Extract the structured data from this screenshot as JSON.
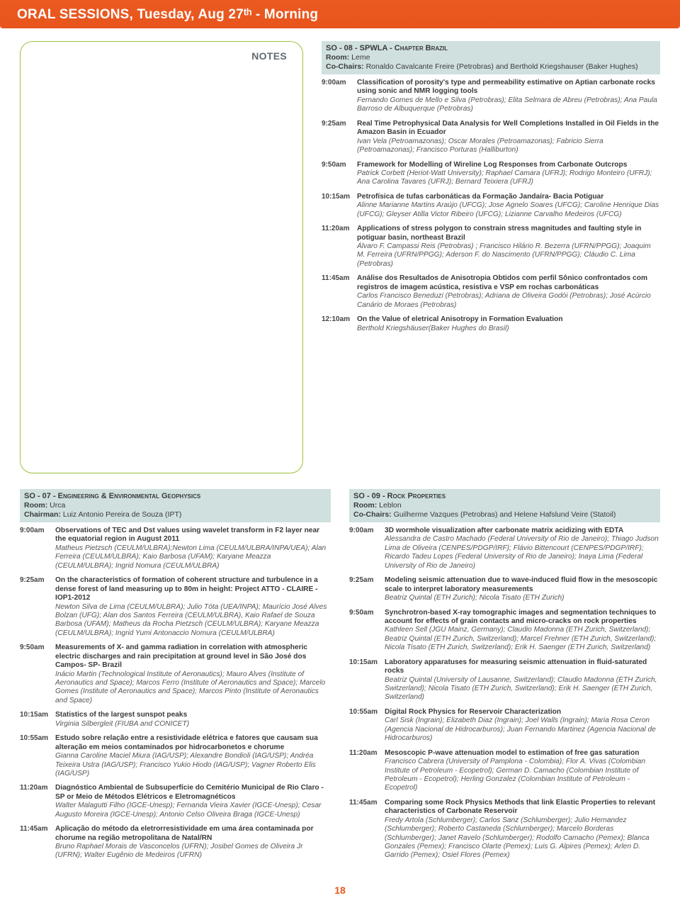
{
  "header": "ORAL SESSIONS, Tuesday, Aug 27ᵗʰ - Morning",
  "notes_label": "NOTES",
  "page_number": "18",
  "sess08": {
    "title": "SO - 08 - SPWLA - Chapter Brazil",
    "room_label": "Room:",
    "room": "Leme",
    "chairs_label": "Co-Chairs:",
    "chairs": "Ronaldo Cavalcante Freire (Petrobras) and Berthold Kriegshauser (Baker Hughes)",
    "e": [
      {
        "t": "9:00am",
        "ti": "Classification of porosity's type and permeability estimative on Aptian carbonate rocks using sonic and NMR logging tools",
        "a": "Fernando Gomes de Mello e Silva (Petrobras); Elita Selmara de Abreu (Petrobras); Ana Paula Barroso de Albuquerque (Petrobras)"
      },
      {
        "t": "9:25am",
        "ti": "Real Time Petrophysical Data Analysis for Well Completions Installed in Oil Fields in the Amazon Basin in Ecuador",
        "a": "Ivan Vela (Petroamazonas); Oscar Morales (Petroamazonas); Fabricio Sierra (Petroamazonas); Francisco Porturas (Halliburton)"
      },
      {
        "t": "9:50am",
        "ti": "Framework for Modelling of Wireline Log Responses from Carbonate Outcrops",
        "a": "Patrick Corbett (Heriot-Watt University); Raphael Camara (UFRJ); Rodrigo Monteiro (UFRJ); Ana Carolina Tavares (UFRJ); Bernard Teixiera (UFRJ)"
      },
      {
        "t": "10:15am",
        "ti": "Petrofísica de tufas carbonáticas da Formação Jandaíra- Bacia Potiguar",
        "a": "Alinne Marianne Martins Araújo (UFCG); Jose Agnelo Soares (UFCG); Caroline Henrique Dias (UFCG); Gleyser Atilla Victor Ribeiro (UFCG); Lizianne Carvalho Medeiros (UFCG)"
      },
      {
        "t": "11:20am",
        "ti": "Applications of stress polygon to constrain stress magnitudes and faulting style in potiguar basin, northeast Brazil",
        "a": "Álvaro F. Campassi Reis (Petrobras) ; Francisco Hilário R. Bezerra (UFRN/PPGG); Joaquim M. Ferreira (UFRN/PPGG); Aderson F. do Nascimento (UFRN/PPGG); Cláudio C. Lima (Petrobras)"
      },
      {
        "t": "11:45am",
        "ti": "Análise dos Resultados de Anisotropia Obtidos com perfil Sônico confrontados com registros de imagem acústica, resistiva e VSP em rochas carbonáticas",
        "a": "Carlos Francisco Beneduzi (Petrobras); Adriana de Oliveira Godói (Petrobras); José Acúrcio Canário de Moraes (Petrobras)"
      },
      {
        "t": "12:10am",
        "ti": "On the Value of eletrical Anisotropy in Formation Evaluation",
        "a": "Berthold Kriegshäuser(Baker Hughes do Brasil)"
      }
    ]
  },
  "sess07": {
    "title": "SO - 07 - Engineering & Environmental Geophysics",
    "room_label": "Room:",
    "room": "Urca",
    "chairs_label": "Chairman:",
    "chairs": "Luiz Antonio Pereira de Souza (IPT)",
    "e": [
      {
        "t": "9:00am",
        "ti": "Observations of TEC and Dst values using wavelet transform in F2 layer near the equatorial region in August 2011",
        "a": "Matheus Pietzsch (CEULM/ULBRA);Newton Lima (CEULM/ULBRA/INPA/UEA); Alan Ferreira (CEULM/ULBRA); Kaio Barbosa (UFAM); Karyane Meazza (CEULM/ULBRA); Ingrid Nomura (CEULM/ULBRA)"
      },
      {
        "t": "9:25am",
        "ti": "On the characteristics of formation of coherent structure and turbulence in a dense forest of land measuring up to 80m in height: Project ATTO - CLAIRE - IOP1-2012",
        "a": "Newton Silva de Lima (CEULM/ULBRA); Julio Tóta (UEA/INPA); Maurício José Alves Bolzan (UFG); Alan dos Santos Ferreira (CEULM/ULBRA), Kaio Rafael de Souza Barbosa (UFAM); Matheus da Rocha Pietzsch (CEULM/ULBRA); Karyane Meazza (CEULM/ULBRA); Ingrid Yumi Antonaccio Nomura (CEULM/ULBRA)"
      },
      {
        "t": "9:50am",
        "ti": "Measurements of X- and gamma radiation in correlation with atmospheric electric discharges and rain precipitation at ground level in São José dos Campos- SP- Brazil",
        "a": "Inácio Martin (Technological Institute of Aeronautics); Mauro Alves (Institute of Aeronautics and Space); Marcos Ferro (Institute of Aeronautics and Space); Marcelo Gomes (Institute of Aeronautics and Space); Marcos Pinto (Institute of Aeronautics and Space)"
      },
      {
        "t": "10:15am",
        "ti": "Statistics of the largest sunspot peaks",
        "a": "Virginia Silbergleit (FIUBA and CONICET)"
      },
      {
        "t": "10:55am",
        "ti": "Estudo sobre relação entre a resistividade elétrica e fatores que causam sua alteração em meios contaminados por hidrocarbonetos e chorume",
        "a": "Gianna Caroline Maciel Miura (IAG/USP); Alexandre Bondioli (IAG/USP); Andréa Teixeira Ustra (IAG/USP); Francisco Yukio Hiodo (IAG/USP); Vagner Roberto Elis (IAG/USP)"
      },
      {
        "t": "11:20am",
        "ti": "Diagnóstico Ambiental de Subsuperfície do Cemitério Municipal de Rio Claro - SP or Meio de Métodos Elétricos e Eletromagnéticos",
        "a": "Walter Malagutti Filho (IGCE-Unesp); Fernanda Vieira Xavier (IGCE-Unesp); Cesar Augusto Moreira (IGCE-Unesp); Antonio Celso Oliveira Braga (IGCE-Unesp)"
      },
      {
        "t": "11:45am",
        "ti": "Aplicação do método da eletrorresistividade em uma área contaminada por chorume na região metropolitana de Natal/RN",
        "a": "Bruno Raphael Morais de Vasconcelos (UFRN); Josibel Gomes de Oliveira Jr (UFRN); Walter Eugênio de Medeiros (UFRN)"
      }
    ]
  },
  "sess09": {
    "title": "SO - 09 - Rock Properties",
    "room_label": "Room:",
    "room": "Leblon",
    "chairs_label": "Co-Chairs:",
    "chairs": "Guilherme Vazques (Petrobras) and Helene Hafslund Veire (Statoil)",
    "e": [
      {
        "t": "9:00am",
        "ti": "3D wormhole visualization after carbonate matrix acidizing with EDTA",
        "a": "Alessandra de Castro Machado (Federal University of Rio de Janeiro); Thiago Judson Lima de Oliveira (CENPES/PDGP/IRF); Flávio Bittencourt (CENPES/PDGP/IRF); Ricardo Tadeu Lopes (Federal University of Rio de Janeiro); Inaya Lima (Federal University of Rio de Janeiro)"
      },
      {
        "t": "9:25am",
        "ti": "Modeling seismic attenuation due to wave-induced fluid flow in the mesoscopic scale to interpret laboratory measurements",
        "a": "Beatriz Quintal (ETH Zurich); Nicola Tisato (ETH Zurich)"
      },
      {
        "t": "9:50am",
        "ti": "Synchrotron-based X-ray tomographic images and segmentation techniques to account for effects of grain contacts and micro-cracks on rock properties",
        "a": "Kathleen Sell (JGU Mainz, Germany); Claudio Madonna (ETH Zurich, Switzerland); Beatriz Quintal (ETH Zurich, Switzerland); Marcel Frehner (ETH Zurich, Switzerland); Nicola Tisato (ETH Zurich, Switzerland); Erik H. Saenger (ETH Zurich, Switzerland)"
      },
      {
        "t": "10:15am",
        "ti": "Laboratory apparatuses for measuring seismic attenuation in fluid-saturated rocks",
        "a": "Beatriz Quintal (University of Lausanne, Switzerland); Claudio Madonna (ETH Zurich, Switzerland); Nicola Tisato (ETH Zurich, Switzerland); Erik H. Saenger (ETH Zurich, Switzerland)"
      },
      {
        "t": "10:55am",
        "ti": "Digital Rock Physics for Reservoir Characterization",
        "a": "Carl Sisk (Ingrain); Elizabeth Diaz (Ingrain); Joel Walls (Ingrain); Maria Rosa Ceron (Agencia Nacional de Hidrocarburos); Juan Fernando Martinez (Agencia Nacional de Hidrocarburos)"
      },
      {
        "t": "11:20am",
        "ti": "Mesoscopic P-wave attenuation model to estimation of free gas saturation",
        "a": "Francisco Cabrera (University of Pamplona - Colombia); Flor A. Vivas (Colombian Institute of Petroleum - Ecopetrol); German D. Camacho (Colombian Institute of Petroleum - Ecopetrol); Herling Gonzalez (Colombian Institute of Petroleum - Ecopetrol)"
      },
      {
        "t": "11:45am",
        "ti": "Comparing some Rock Physics Methods that link Elastic Properties to relevant characteristics of Carbonate Reservoir",
        "a": "Fredy Artola (Schlumberger); Carlos Sanz (Schlumberger); Julio Hernandez (Schlumberger); Roberto Castaneda (Schlumberger); Marcelo Borderas (Schlumberger); Janet Ravelo (Schlumberger); Rodolfo Camacho (Pemex); Blanca Gonzales (Pemex); Francisco Olarte (Pemex); Luis G. Alpires (Pemex); Arlen D. Garrido (Pemex); Osiel Flores (Pemex)"
      }
    ]
  }
}
